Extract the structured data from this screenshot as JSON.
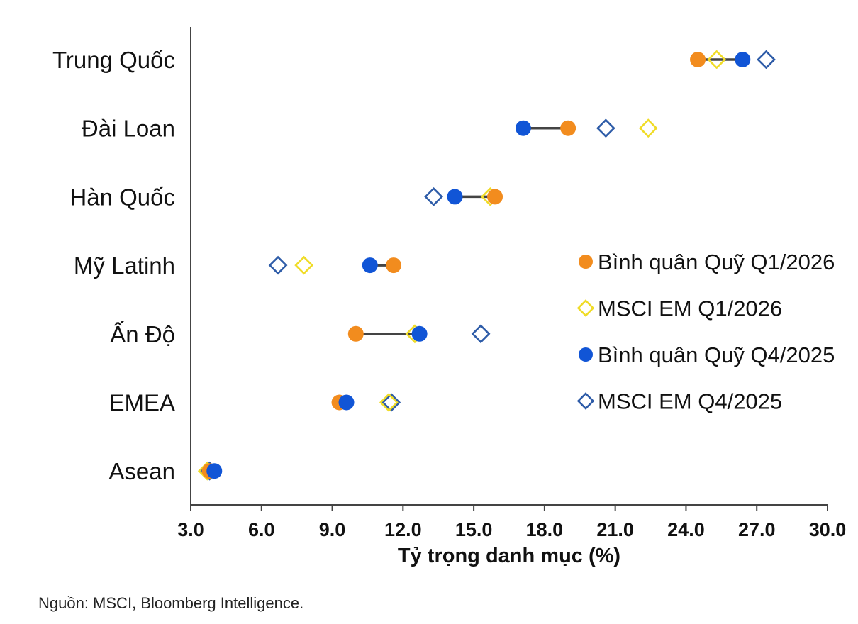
{
  "chart_data": {
    "type": "scatter",
    "xlabel": "Tỷ trọng danh mục (%)",
    "xlim": [
      3.0,
      30.0
    ],
    "xticks": [
      "3.0",
      "6.0",
      "9.0",
      "12.0",
      "15.0",
      "18.0",
      "21.0",
      "24.0",
      "27.0",
      "30.0"
    ],
    "categories": [
      "Trung Quốc",
      "Đài Loan",
      "Hàn Quốc",
      "Mỹ Latinh",
      "Ấn Độ",
      "EMEA",
      "Asean"
    ],
    "series": [
      {
        "name": "Bình quân Quỹ Q1/2026",
        "marker": "circle",
        "color": "#F28C1E",
        "values": [
          24.5,
          19.0,
          15.9,
          11.6,
          10.0,
          9.3,
          3.8
        ]
      },
      {
        "name": "MSCI EM Q1/2026",
        "marker": "diamond-open",
        "color": "#F0DC28",
        "values": [
          25.3,
          22.4,
          15.7,
          7.8,
          12.5,
          11.4,
          3.7
        ]
      },
      {
        "name": "Bình quân Quỹ Q4/2025",
        "marker": "circle",
        "color": "#1155D6",
        "values": [
          26.4,
          17.1,
          14.2,
          10.6,
          12.7,
          9.6,
          4.0
        ]
      },
      {
        "name": "MSCI EM Q4/2025",
        "marker": "diamond-open",
        "color": "#2E5CA8",
        "values": [
          27.4,
          20.6,
          13.3,
          6.7,
          15.3,
          11.5,
          3.8
        ]
      }
    ],
    "connector": {
      "color": "#444444",
      "between": [
        "Bình quân Quỹ Q1/2026",
        "Bình quân Quỹ Q4/2025"
      ]
    },
    "legend_position": "right",
    "grid": false
  },
  "source": "Nguồn: MSCI, Bloomberg Intelligence."
}
